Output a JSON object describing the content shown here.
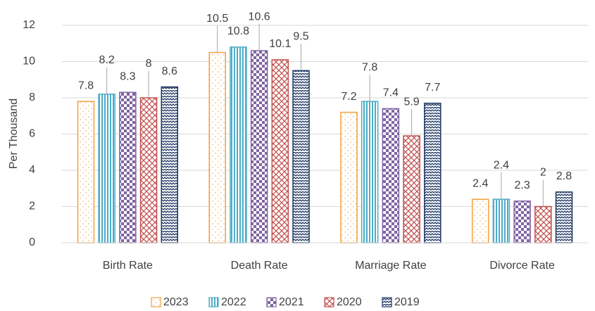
{
  "chart_data": {
    "type": "bar",
    "y_label": "Per Thousand",
    "categories": [
      "Birth Rate",
      "Death Rate",
      "Marriage Rate",
      "Divorce Rate"
    ],
    "series": [
      {
        "name": "2023",
        "color": "#f0a040",
        "pattern": "dots",
        "values": [
          7.8,
          10.5,
          7.2,
          2.4
        ]
      },
      {
        "name": "2022",
        "color": "#4bacc6",
        "pattern": "vertical",
        "values": [
          8.2,
          10.8,
          7.8,
          2.4
        ]
      },
      {
        "name": "2021",
        "color": "#8064a2",
        "pattern": "checker",
        "values": [
          8.3,
          10.6,
          7.4,
          2.3
        ]
      },
      {
        "name": "2020",
        "color": "#c0504d",
        "pattern": "crosshatch",
        "values": [
          8,
          10.1,
          5.9,
          2
        ]
      },
      {
        "name": "2019",
        "color": "#1f3864",
        "pattern": "wave",
        "values": [
          8.6,
          9.5,
          7.7,
          2.8
        ]
      }
    ],
    "ylim": [
      0,
      12
    ],
    "yticks": [
      0,
      2,
      4,
      6,
      8,
      10,
      12
    ],
    "grid": true,
    "legend": "bottom"
  }
}
